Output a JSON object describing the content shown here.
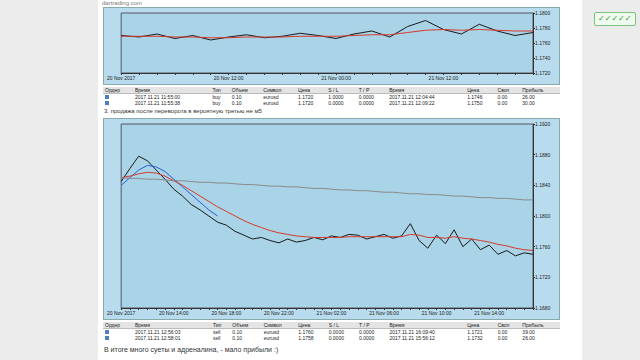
{
  "url": "dartrading.com",
  "badge": "✓✓✓✓✓",
  "chart_data": [
    {
      "type": "line",
      "categories": [
        "20 Nov 2017",
        null,
        null,
        null,
        null,
        null,
        "20 Nov 12:00",
        null,
        null,
        null,
        null,
        null,
        "21 Nov 00:00",
        null,
        null,
        null,
        null,
        null,
        "21 Nov 12:00",
        null,
        null,
        null,
        null,
        null
      ],
      "series": [
        {
          "color": "#1a1a1a",
          "values": [
            1.177,
            1.1768,
            1.1772,
            1.1766,
            1.177,
            1.1764,
            1.1768,
            1.1771,
            1.1767,
            1.1769,
            1.1773,
            1.177,
            1.1766,
            1.1772,
            1.1776,
            1.1768,
            1.1782,
            1.179,
            1.1778,
            1.1772,
            1.1785,
            1.1776,
            1.177,
            1.1774
          ]
        },
        {
          "color": "#d83a2a",
          "values": [
            1.1769,
            1.1769,
            1.1769,
            1.1768,
            1.1768,
            1.1767,
            1.1767,
            1.1768,
            1.1768,
            1.1768,
            1.1769,
            1.1769,
            1.1769,
            1.177,
            1.1771,
            1.1771,
            1.1774,
            1.1777,
            1.1778,
            1.1777,
            1.1778,
            1.1777,
            1.1776,
            1.1776
          ]
        }
      ],
      "ylim": [
        1.172,
        1.18
      ],
      "yticks": [
        {
          "value": 1.172,
          "label": "1.1720"
        },
        {
          "value": 1.174,
          "label": "1.1740"
        },
        {
          "value": 1.176,
          "label": "1.1760"
        },
        {
          "value": 1.178,
          "label": "1.1780"
        },
        {
          "value": 1.18,
          "label": "1.1800"
        }
      ],
      "grid": false
    },
    {
      "type": "line",
      "categories": [
        "20 Nov 2017",
        null,
        null,
        null,
        null,
        null,
        "20 Nov 14:00",
        null,
        null,
        null,
        null,
        null,
        "20 Nov 18:00",
        null,
        null,
        null,
        null,
        null,
        "20 Nov 22:00",
        null,
        null,
        null,
        null,
        null,
        "21 Nov 02:00",
        null,
        null,
        null,
        null,
        null,
        "21 Nov 06:00",
        null,
        null,
        null,
        null,
        null,
        "21 Nov 10:00",
        null,
        null,
        null,
        null,
        null,
        "21 Nov 14:00",
        null,
        null,
        null,
        null,
        null
      ],
      "series": [
        {
          "color": "#1a1a1a",
          "values": [
            1.1845,
            1.1862,
            1.1878,
            1.1872,
            1.186,
            1.1848,
            1.1835,
            1.1826,
            1.1815,
            1.1808,
            1.18,
            1.1792,
            1.1788,
            1.178,
            1.1775,
            1.177,
            1.1772,
            1.1768,
            1.1765,
            1.177,
            1.1766,
            1.1768,
            1.1772,
            1.1769,
            1.1774,
            1.1772,
            1.1776,
            1.1775,
            1.177,
            1.1773,
            1.1776,
            1.1771,
            1.1774,
            1.179,
            1.1768,
            1.1758,
            1.1775,
            1.1764,
            1.1782,
            1.176,
            1.177,
            1.1756,
            1.1762,
            1.175,
            1.1755,
            1.1748,
            1.1752,
            1.175
          ]
        },
        {
          "color": "#2a5fd8",
          "values": [
            1.184,
            1.185,
            1.186,
            1.1866,
            1.1864,
            1.1858,
            1.1848,
            1.1838,
            1.1828,
            1.1818,
            1.1808,
            1.18,
            null,
            null,
            null,
            null,
            null,
            null,
            null,
            null,
            null,
            null,
            null,
            null,
            null,
            null,
            null,
            null,
            null,
            null,
            null,
            null,
            null,
            null,
            null,
            null,
            null,
            null,
            null,
            null,
            null,
            null,
            null,
            null,
            null,
            null,
            null,
            null
          ]
        },
        {
          "color": "#d83a2a",
          "values": [
            1.185,
            1.1852,
            1.1855,
            1.1857,
            1.1856,
            1.1852,
            1.1846,
            1.184,
            1.1833,
            1.1826,
            1.1819,
            1.1812,
            1.1806,
            1.18,
            1.1794,
            1.1789,
            1.1785,
            1.1781,
            1.1778,
            1.1776,
            1.1774,
            1.1773,
            1.1772,
            1.1772,
            1.1772,
            1.1772,
            1.1773,
            1.1773,
            1.1773,
            1.1773,
            1.1773,
            1.1773,
            1.1773,
            1.1776,
            1.1775,
            1.1772,
            1.1772,
            1.1771,
            1.1773,
            1.1771,
            1.177,
            1.1768,
            1.1766,
            1.1763,
            1.1761,
            1.1758,
            1.1756,
            1.1755
          ]
        },
        {
          "color": "#8a8a8a",
          "values": [
            1.185,
            1.1849,
            1.1849,
            1.1848,
            1.1848,
            1.1847,
            1.1846,
            1.1846,
            1.1845,
            1.1844,
            1.1844,
            1.1843,
            1.1843,
            1.1842,
            1.1841,
            1.1841,
            1.184,
            1.1839,
            1.1839,
            1.1838,
            1.1838,
            1.1837,
            1.1836,
            1.1836,
            1.1835,
            1.1834,
            1.1834,
            1.1833,
            1.1833,
            1.1832,
            1.1831,
            1.1831,
            1.183,
            1.1829,
            1.1829,
            1.1828,
            1.1828,
            1.1827,
            1.1826,
            1.1826,
            1.1825,
            1.1824,
            1.1824,
            1.1823,
            1.1823,
            1.1822,
            1.1821,
            1.1821
          ]
        }
      ],
      "ylim": [
        1.168,
        1.192
      ],
      "yticks": [
        {
          "value": 1.168,
          "label": "1.1680"
        },
        {
          "value": 1.172,
          "label": "1.1720"
        },
        {
          "value": 1.176,
          "label": "1.1760"
        },
        {
          "value": 1.18,
          "label": "1.1800"
        },
        {
          "value": 1.184,
          "label": "1.1840"
        },
        {
          "value": 1.188,
          "label": "1.1880"
        },
        {
          "value": 1.192,
          "label": "1.1920"
        }
      ],
      "grid": false
    }
  ],
  "tables": [
    {
      "header": [
        "Ордер",
        "Время",
        "Тип",
        "Объем",
        "Символ",
        "Цена",
        "S / L",
        "T / P",
        "Время",
        "Цена",
        "Своп",
        "Прибыль"
      ],
      "rows": [
        [
          "2017.11.21 11:55:00",
          "buy",
          "0.10",
          "eurusd",
          "1.1720",
          "1.0000",
          "0.0000",
          "2017.11.21 12:04:44",
          "1.1746",
          "0.00",
          "26.00"
        ],
        [
          "2017.11.21 11:55:38",
          "buy",
          "0.10",
          "eurusd",
          "1.1720",
          "0.0000",
          "0.0000",
          "2017.11.21 12:09:22",
          "1.1750",
          "0.00",
          "30.00"
        ]
      ]
    },
    {
      "header": [
        "Ордер",
        "Время",
        "Тип",
        "Объем",
        "Символ",
        "Цена",
        "S / L",
        "T / P",
        "Время",
        "Цена",
        "Своп",
        "Прибыль"
      ],
      "rows": [
        [
          "2017.11.21 12:56:03",
          "sell",
          "0.10",
          "eurusd",
          "1.1760",
          "0.0000",
          "0.0000",
          "2017.11.21 16:09:40",
          "1.1721",
          "0.00",
          "39.00"
        ],
        [
          "2017.11.21 12:58:01",
          "sell",
          "0.10",
          "eurusd",
          "1.1758",
          "0.0000",
          "0.0000",
          "2017.11.21 15:56:12",
          "1.1732",
          "0.00",
          "26.00"
        ]
      ]
    }
  ],
  "texts": [
    "3. продажа после переворота в вероятную третью не м5",
    "В итоге много суеты и адреналина, - мало прибыли :)"
  ]
}
